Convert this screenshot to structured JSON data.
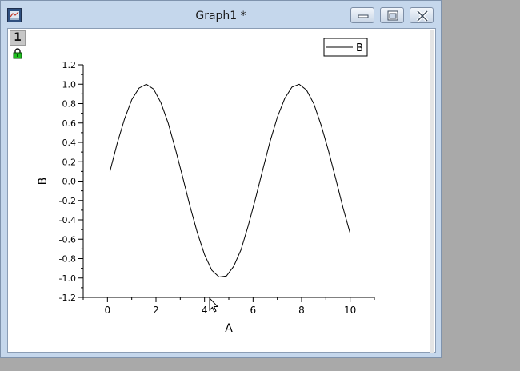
{
  "window": {
    "title": "Graph1 *",
    "layer_label": "1"
  },
  "chart_data": {
    "type": "line",
    "xlabel": "A",
    "ylabel": "B",
    "xlim": [
      -1,
      11
    ],
    "ylim": [
      -1.2,
      1.2
    ],
    "xticks": [
      0,
      2,
      4,
      6,
      8,
      10
    ],
    "yticks": [
      1.2,
      1.0,
      0.8,
      0.6,
      0.4,
      0.2,
      0.0,
      -0.2,
      -0.4,
      -0.6,
      -0.8,
      -1.0,
      -1.2
    ],
    "ytick_labels": [
      "1.2",
      "1.0",
      "0.8",
      "0.6",
      "0.4",
      "0.2",
      "0.0",
      "-0.2",
      "-0.4",
      "-0.6",
      "-0.8",
      "-1.0",
      "-1.2"
    ],
    "grid": false,
    "legend_position": "top-right",
    "series": [
      {
        "name": "B",
        "color": "#000000",
        "x": [
          0.1,
          0.4,
          0.7,
          1.0,
          1.3,
          1.6,
          1.9,
          2.2,
          2.5,
          2.8,
          3.1,
          3.4,
          3.7,
          4.0,
          4.3,
          4.6,
          4.9,
          5.2,
          5.5,
          5.8,
          6.1,
          6.4,
          6.7,
          7.0,
          7.3,
          7.6,
          7.9,
          8.2,
          8.5,
          8.8,
          9.1,
          9.4,
          9.7,
          10.0
        ],
        "y": [
          0.1,
          0.39,
          0.64,
          0.84,
          0.96,
          1.0,
          0.95,
          0.81,
          0.6,
          0.33,
          0.04,
          -0.26,
          -0.53,
          -0.76,
          -0.92,
          -0.99,
          -0.98,
          -0.88,
          -0.71,
          -0.46,
          -0.18,
          0.12,
          0.41,
          0.66,
          0.85,
          0.97,
          1.0,
          0.94,
          0.8,
          0.58,
          0.32,
          0.03,
          -0.27,
          -0.54
        ]
      }
    ]
  }
}
